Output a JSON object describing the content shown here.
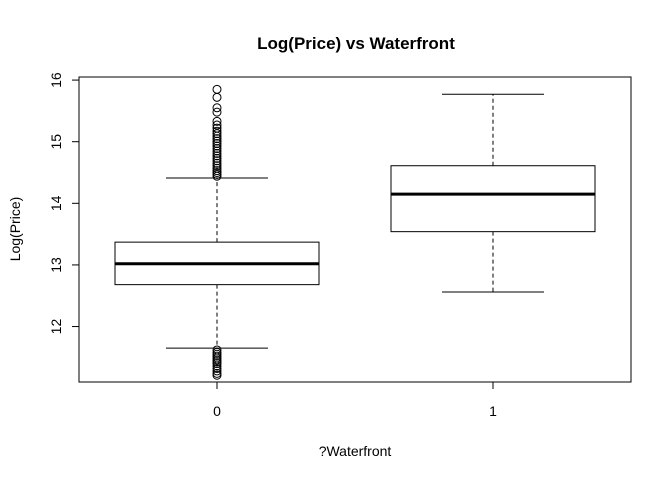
{
  "chart_data": {
    "type": "boxplot",
    "title": "Log(Price) vs Waterfront",
    "xlabel": "?Waterfront",
    "ylabel": "Log(Price)",
    "categories": [
      "0",
      "1"
    ],
    "ylim": [
      11.1,
      16.05
    ],
    "yticks": [
      12,
      13,
      14,
      15,
      16
    ],
    "grid": false,
    "boxes": [
      {
        "category": "0",
        "whisker_low": 11.65,
        "q1": 12.68,
        "median": 13.02,
        "q3": 13.37,
        "whisker_high": 14.41,
        "outliers": [
          15.85,
          15.72,
          15.55,
          15.48,
          15.33,
          15.27,
          15.22,
          15.17,
          15.13,
          15.09,
          15.05,
          15.01,
          14.97,
          14.93,
          14.89,
          14.85,
          14.81,
          14.77,
          14.73,
          14.69,
          14.65,
          14.61,
          14.57,
          14.53,
          14.5,
          14.47,
          14.44,
          11.62,
          11.58,
          11.55,
          11.52,
          11.49,
          11.46,
          11.43,
          11.4,
          11.36,
          11.32,
          11.28,
          11.24,
          11.21
        ]
      },
      {
        "category": "1",
        "whisker_low": 12.56,
        "q1": 13.54,
        "median": 14.15,
        "q3": 14.61,
        "whisker_high": 15.77,
        "outliers": []
      }
    ]
  }
}
